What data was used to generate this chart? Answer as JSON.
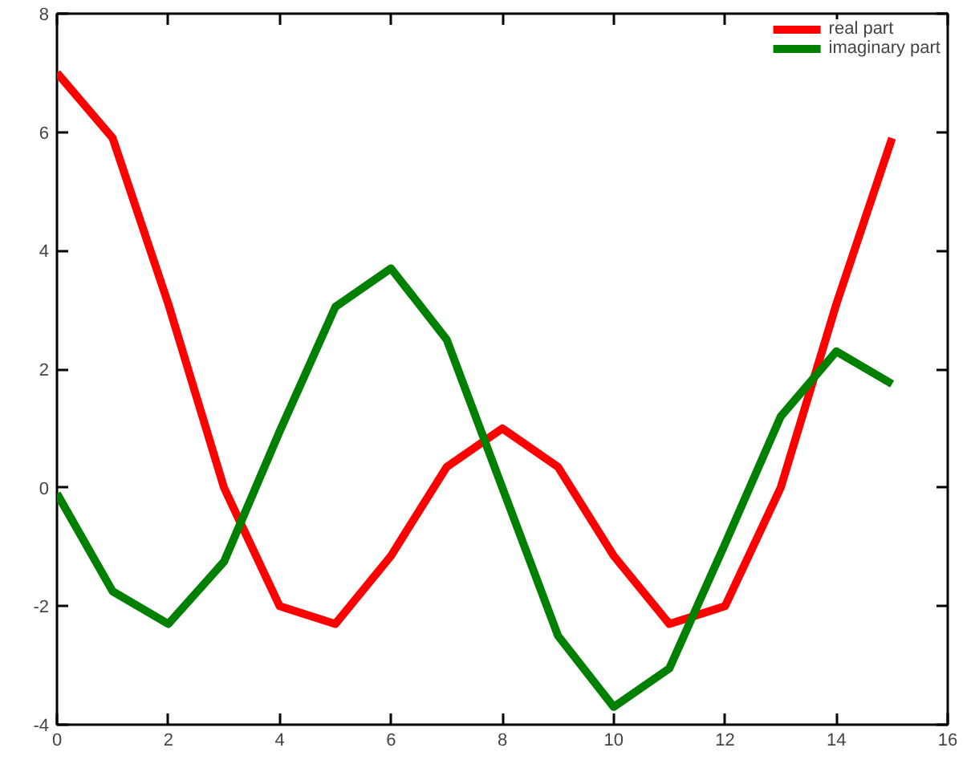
{
  "chart_data": {
    "type": "line",
    "x": [
      0,
      1,
      2,
      3,
      4,
      5,
      6,
      7,
      8,
      9,
      10,
      11,
      12,
      13,
      14,
      15
    ],
    "series": [
      {
        "name": "real part",
        "color": "#ff0000",
        "values": [
          7,
          5.9,
          3.1,
          0,
          -2,
          -2.3,
          -1.15,
          0.35,
          1,
          0.35,
          -1.15,
          -2.3,
          -2,
          0,
          3.1,
          5.9
        ]
      },
      {
        "name": "imaginary part",
        "color": "#008000",
        "values": [
          -0.1,
          -1.75,
          -2.3,
          -1.25,
          0.95,
          3.05,
          3.7,
          2.5,
          0,
          -2.5,
          -3.7,
          -3.05,
          -0.95,
          1.2,
          2.3,
          1.75
        ]
      }
    ],
    "xlim": [
      0,
      16
    ],
    "xticks": [
      0,
      2,
      4,
      6,
      8,
      10,
      12,
      14,
      16
    ],
    "ylim": [
      -4,
      8
    ],
    "yticks": [
      -4,
      -2,
      0,
      2,
      4,
      6,
      8
    ],
    "grid": false,
    "legend": "top right",
    "marker": "none",
    "line_style": "solid"
  }
}
